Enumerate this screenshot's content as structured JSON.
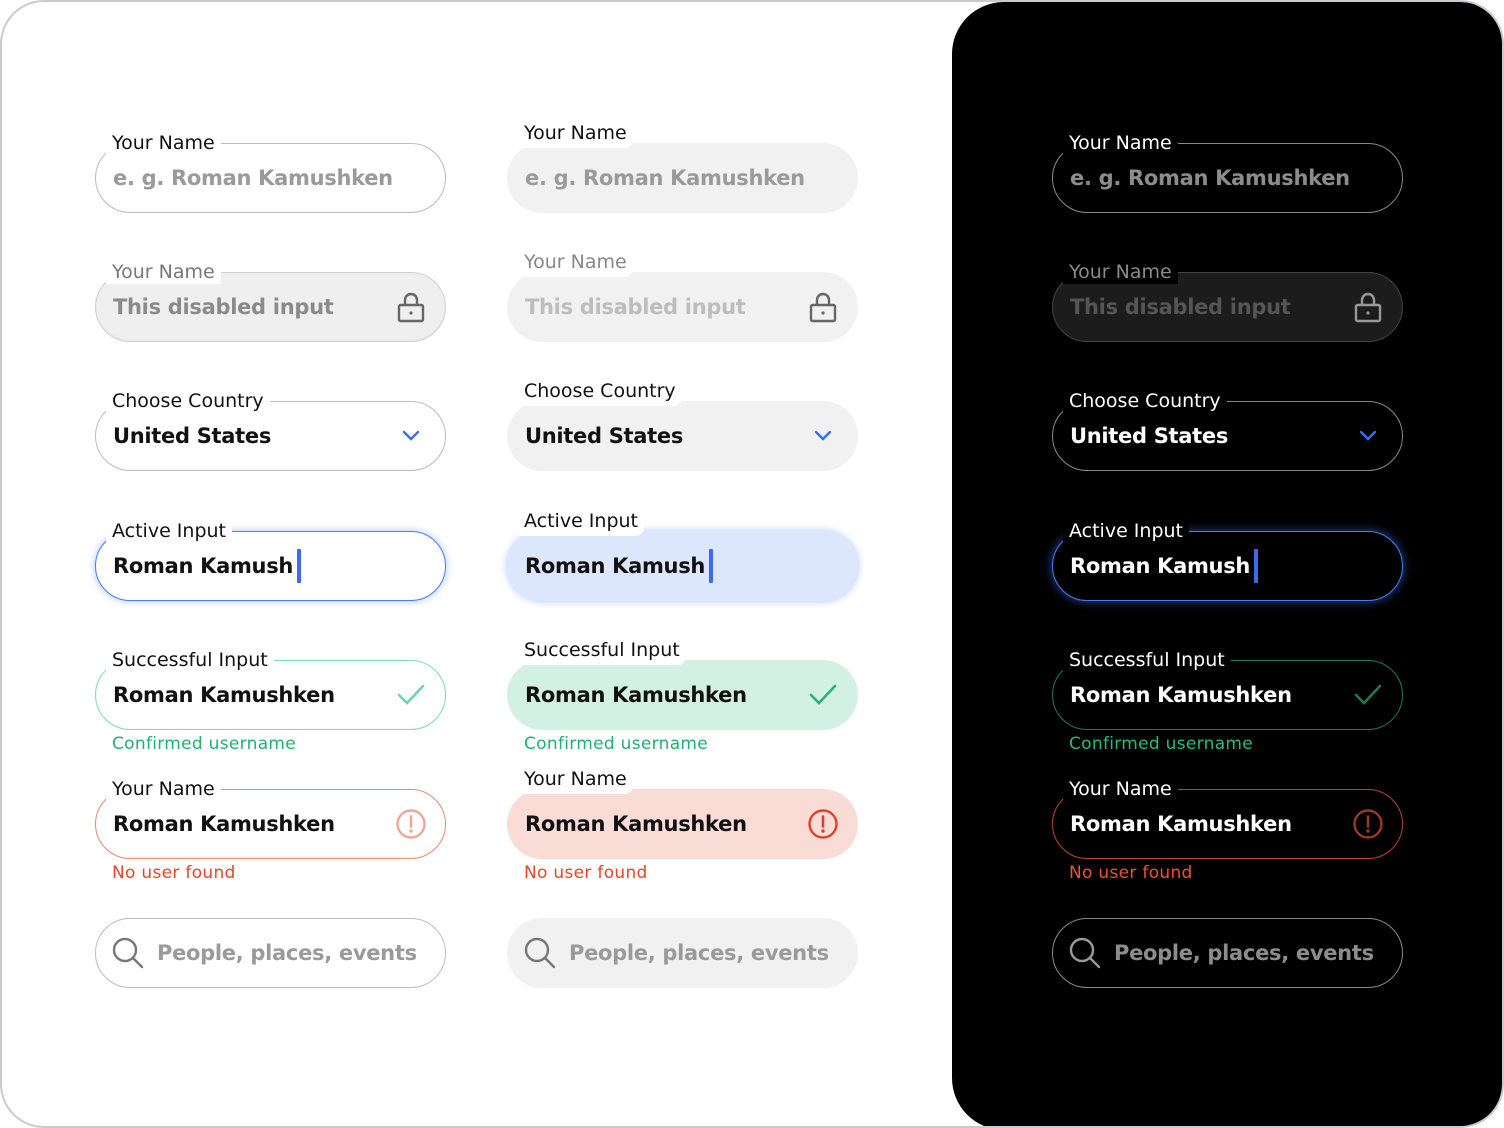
{
  "colors": {
    "accent": "#4a7cf3",
    "success": "#22b573",
    "error": "#e8472c",
    "dark_bg": "#000000"
  },
  "columns": [
    {
      "variant": "outlined-light"
    },
    {
      "variant": "filled-light"
    },
    {
      "variant": "outlined-dark"
    }
  ],
  "fields": [
    {
      "state": "placeholder",
      "label": "Your Name",
      "placeholder": "e. g. Roman Kamushken",
      "icon": ""
    },
    {
      "state": "disabled",
      "label": "Your Name",
      "placeholder": "This disabled input",
      "icon": "lock-icon"
    },
    {
      "state": "select",
      "label": "Choose Country",
      "value": "United States",
      "icon": "chevron-down-icon"
    },
    {
      "state": "active",
      "label": "Active Input",
      "value": "Roman Kamush",
      "icon": ""
    },
    {
      "state": "success",
      "label": "Successful Input",
      "value": "Roman Kamushken",
      "icon": "check-icon",
      "helper": "Confirmed username"
    },
    {
      "state": "error",
      "label": "Your Name",
      "value": "Roman Kamushken",
      "icon": "alert-circle-icon",
      "helper": "No user found"
    },
    {
      "state": "search",
      "label": "",
      "placeholder": "People, places, events",
      "icon": "search-icon"
    }
  ]
}
